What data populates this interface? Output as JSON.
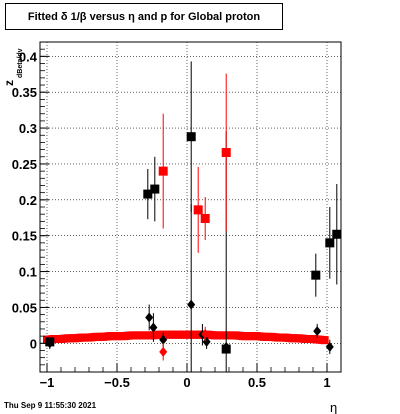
{
  "title": "Fitted δ 1/β versus η and p for Global proton",
  "timestamp": "Thu Sep  9 11:55:30 2021",
  "chart_data": {
    "type": "scatter",
    "title": "Fitted δ 1/β versus η and p for Global proton",
    "xlabel": "η",
    "ylabel": "z",
    "ylabel_sub": "dBeta/dv",
    "xlim": [
      -1.05,
      1.1
    ],
    "ylim": [
      -0.04,
      0.42
    ],
    "x_ticks": [
      -1,
      -0.5,
      0,
      0.5,
      1
    ],
    "x_tick_labels": [
      "−1",
      "−0.5",
      "0",
      "0.5",
      "1"
    ],
    "y_ticks": [
      0,
      0.05,
      0.1,
      0.15,
      0.2,
      0.25,
      0.3,
      0.35,
      0.4
    ],
    "y_tick_labels": [
      "0",
      "0.05",
      "0.1",
      "0.15",
      "0.2",
      "0.25",
      "0.3",
      "0.35",
      "0.4"
    ],
    "grid": true,
    "colors": {
      "black": "#000000",
      "red": "#ff0000"
    },
    "series": [
      {
        "color": "#000000",
        "marker": "square",
        "points": [
          {
            "x": -0.98,
            "y": 0.002,
            "err": 0.006
          },
          {
            "x": -0.28,
            "y": 0.208,
            "err": 0.035
          },
          {
            "x": -0.23,
            "y": 0.215,
            "err": 0.045
          },
          {
            "x": 0.03,
            "y": 0.288,
            "err": 0.105
          },
          {
            "x": 0.28,
            "y": -0.008,
            "err": 0.006
          },
          {
            "x": 0.92,
            "y": 0.095,
            "err": 0.03
          },
          {
            "x": 1.02,
            "y": 0.14,
            "err": 0.05
          },
          {
            "x": 1.07,
            "y": 0.152,
            "err": 0.07
          }
        ]
      },
      {
        "color": "#000000",
        "marker": "diamond",
        "points": [
          {
            "x": -0.98,
            "y": 0.0,
            "err": 0.008
          },
          {
            "x": -0.27,
            "y": 0.036,
            "err": 0.018
          },
          {
            "x": -0.24,
            "y": 0.022,
            "err": 0.02
          },
          {
            "x": -0.17,
            "y": 0.005,
            "err": 0.01
          },
          {
            "x": 0.03,
            "y": 0.054,
            "err": 0.14
          },
          {
            "x": 0.11,
            "y": 0.012,
            "err": 0.015
          },
          {
            "x": 0.14,
            "y": 0.002,
            "err": 0.01
          },
          {
            "x": 0.28,
            "y": -0.005,
            "err": 0.3
          },
          {
            "x": 0.93,
            "y": 0.017,
            "err": 0.01
          },
          {
            "x": 1.02,
            "y": -0.005,
            "err": 0.01
          }
        ]
      },
      {
        "color": "#ff0000",
        "marker": "square",
        "points": [
          {
            "x": -0.17,
            "y": 0.24,
            "err": 0.08
          },
          {
            "x": 0.08,
            "y": 0.186,
            "err": 0.06
          },
          {
            "x": 0.13,
            "y": 0.174,
            "err": 0.03
          },
          {
            "x": 0.28,
            "y": 0.266,
            "err": 0.11
          }
        ]
      },
      {
        "color": "#ff0000",
        "marker": "diamond",
        "points": [
          {
            "x": -0.17,
            "y": -0.012,
            "err": 0.012
          },
          {
            "x": 0.13,
            "y": 0.013,
            "err": 0.01
          }
        ]
      }
    ],
    "band": {
      "color": "#ff0000",
      "x": [
        -1.0,
        -0.95,
        -0.9,
        -0.85,
        -0.8,
        -0.75,
        -0.7,
        -0.65,
        -0.6,
        -0.55,
        -0.5,
        -0.45,
        -0.4,
        -0.35,
        -0.3,
        -0.25,
        -0.2,
        -0.15,
        -0.1,
        -0.05,
        0.0,
        0.05,
        0.1,
        0.15,
        0.2,
        0.25,
        0.3,
        0.35,
        0.4,
        0.45,
        0.5,
        0.55,
        0.6,
        0.65,
        0.7,
        0.75,
        0.8,
        0.85,
        0.9,
        0.95,
        1.0
      ],
      "y": [
        0.005,
        0.006,
        0.006,
        0.007,
        0.007,
        0.008,
        0.008,
        0.009,
        0.009,
        0.01,
        0.01,
        0.01,
        0.011,
        0.011,
        0.011,
        0.011,
        0.012,
        0.012,
        0.012,
        0.012,
        0.012,
        0.012,
        0.012,
        0.012,
        0.011,
        0.011,
        0.011,
        0.011,
        0.01,
        0.01,
        0.01,
        0.009,
        0.009,
        0.008,
        0.008,
        0.007,
        0.007,
        0.006,
        0.006,
        0.005,
        0.004
      ]
    }
  }
}
